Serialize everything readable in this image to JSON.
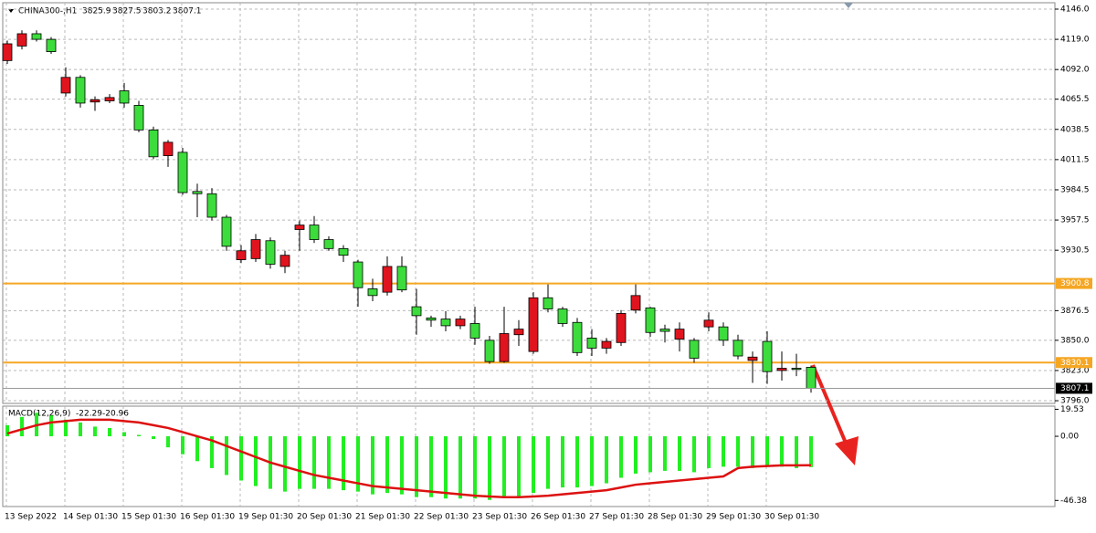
{
  "chart_data": {
    "type": "candlestick",
    "title": "CHINA300-,H1",
    "categories": [
      "13 Sep 2022",
      null,
      null,
      null,
      "14 Sep 01:30",
      null,
      null,
      null,
      "15 Sep 01:30",
      null,
      null,
      null,
      "16 Sep 01:30",
      null,
      null,
      null,
      "19 Sep 01:30",
      null,
      null,
      null,
      "20 Sep 01:30",
      null,
      null,
      null,
      "21 Sep 01:30",
      null,
      null,
      null,
      "22 Sep 01:30",
      null,
      null,
      null,
      "23 Sep 01:30",
      null,
      null,
      null,
      "26 Sep 01:30",
      null,
      null,
      null,
      "27 Sep 01:30",
      null,
      null,
      null,
      "28 Sep 01:30",
      null,
      null,
      null,
      "29 Sep 01:30",
      null,
      null,
      null,
      "30 Sep 01:30",
      null,
      null,
      null
    ],
    "open": [
      4100,
      4113,
      4124,
      4119,
      4071,
      4085,
      4063,
      4064,
      4073,
      4060,
      4038,
      4015,
      4018,
      3983,
      3981,
      3960,
      3922,
      3923,
      3939,
      3916,
      3949,
      3953,
      3940,
      3932,
      3920,
      3896,
      3893,
      3916,
      3880,
      3870,
      3869,
      3863,
      3865,
      3850,
      3831,
      3855,
      3840,
      3888,
      3878,
      3866,
      3852,
      3843,
      3848,
      3877,
      3879,
      3860,
      3851,
      3850,
      3862,
      3862,
      3850,
      3832,
      3849,
      3823,
      3825,
      3825.9
    ],
    "high": [
      4118,
      4127,
      4127,
      4121,
      4094,
      4087,
      4068,
      4070,
      4080,
      4064,
      4041,
      4029,
      4022,
      3990,
      3986,
      3962,
      3935,
      3945,
      3942,
      3930,
      3957,
      3961,
      3943,
      3935,
      3922,
      3905,
      3925,
      3925,
      3896,
      3872,
      3876,
      3872,
      3880,
      3854,
      3880,
      3868,
      3893,
      3900,
      3880,
      3870,
      3860,
      3852,
      3877,
      3900,
      3880,
      3864,
      3866,
      3852,
      3875,
      3866,
      3855,
      3840,
      3858,
      3840,
      3838,
      3827.5
    ],
    "low": [
      4097,
      4110,
      4117,
      4106,
      4068,
      4058,
      4055,
      4062,
      4058,
      4036,
      4012,
      4005,
      3980,
      3960,
      3957,
      3930,
      3919,
      3920,
      3914,
      3910,
      3930,
      3937,
      3930,
      3920,
      3880,
      3885,
      3890,
      3893,
      3855,
      3862,
      3858,
      3860,
      3846,
      3829,
      3830,
      3845,
      3838,
      3875,
      3862,
      3836,
      3836,
      3838,
      3845,
      3874,
      3853,
      3848,
      3840,
      3830,
      3858,
      3845,
      3833,
      3812,
      3811,
      3814,
      3818,
      3803.2
    ],
    "close": [
      4115,
      4124,
      4119,
      4108,
      4085,
      4062,
      4065,
      4067,
      4062,
      4038,
      4014,
      4027,
      3982,
      3981,
      3960,
      3934,
      3930,
      3940,
      3918,
      3926,
      3953,
      3940,
      3932,
      3926,
      3897,
      3890,
      3916,
      3895,
      3872,
      3868,
      3863,
      3869,
      3852,
      3831,
      3856,
      3860,
      3888,
      3878,
      3865,
      3839,
      3843,
      3849,
      3874,
      3890,
      3857,
      3858,
      3860,
      3834,
      3868,
      3850,
      3836,
      3835,
      3822,
      3825,
      3824,
      3807.1
    ],
    "up_color": "#e0141e",
    "down_color": "#3cdc3c",
    "ylim": [
      3793.6,
      4151.7
    ],
    "yticks": [
      {
        "value": 4146,
        "label": "4146.0"
      },
      {
        "value": 4119,
        "label": "4119.0"
      },
      {
        "value": 4092,
        "label": "4092.0"
      },
      {
        "value": 4065.5,
        "label": "4065.5"
      },
      {
        "value": 4038.5,
        "label": "4038.5"
      },
      {
        "value": 4011.5,
        "label": "4011.5"
      },
      {
        "value": 3984.5,
        "label": "3984.5"
      },
      {
        "value": 3957.5,
        "label": "3957.5"
      },
      {
        "value": 3930.5,
        "label": "3930.5"
      },
      {
        "value": 3876.5,
        "label": "3876.5"
      },
      {
        "value": 3850,
        "label": "3850.0"
      },
      {
        "value": 3823,
        "label": "3823.0"
      },
      {
        "value": 3796,
        "label": "3796.0"
      }
    ],
    "grid": true,
    "levels": [
      3900.8,
      3830.1
    ],
    "level_color": "#f5a623",
    "indicator": {
      "title": "MACD(12,26,9)",
      "color": "#22ee22",
      "signal_color": "#dd1111",
      "values": [
        8,
        14,
        17,
        15,
        12,
        10,
        7,
        6,
        3,
        1,
        -2,
        -8,
        -13,
        -18,
        -23,
        -28,
        -32,
        -36,
        -38,
        -40,
        -38,
        -38,
        -38,
        -39,
        -40,
        -42,
        -41,
        -42,
        -44,
        -44,
        -45,
        -45,
        -45,
        -46,
        -44,
        -44,
        -41,
        -38,
        -37,
        -37,
        -36,
        -34,
        -30,
        -27,
        -26,
        -25,
        -25,
        -26,
        -23,
        -22,
        -22,
        -23,
        -21,
        -22,
        -23,
        -22.29
      ],
      "signal": [
        2,
        5,
        8,
        10,
        11,
        12,
        12,
        12,
        11,
        10,
        8,
        6,
        3,
        0,
        -3,
        -7,
        -11,
        -15,
        -19,
        -22,
        -25,
        -28,
        -30,
        -32,
        -34,
        -36,
        -37,
        -38,
        -39,
        -40,
        -41,
        -42,
        -43,
        -43.5,
        -44,
        -44,
        -43.5,
        -43,
        -42,
        -41,
        -40,
        -39,
        -37,
        -35,
        -34,
        -33,
        -32,
        -31,
        -30,
        -29,
        -23,
        -22,
        -21.5,
        -21,
        -21,
        -20.96
      ],
      "ylim": [
        -50.8,
        21.8
      ],
      "yticks": [
        19.53,
        {
          "value": 0,
          "label": "0.00"
        },
        -46.38
      ]
    }
  }
}
